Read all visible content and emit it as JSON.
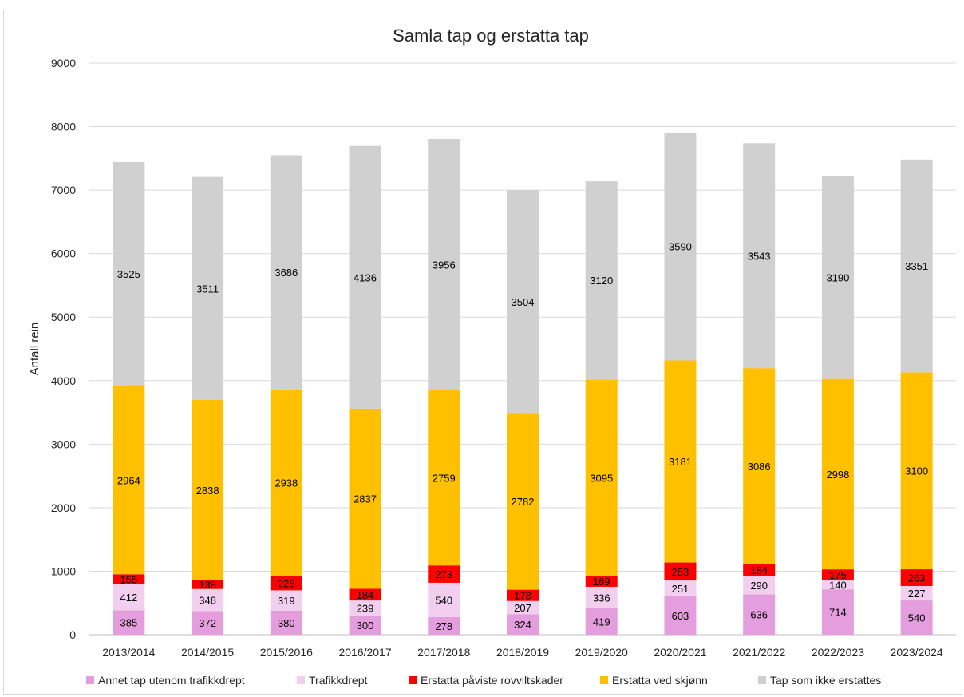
{
  "chart_data": {
    "type": "bar",
    "stacked": true,
    "title": "Samla tap og erstatta tap",
    "xlabel": "",
    "ylabel": "Antall rein",
    "ylim": [
      0,
      9000
    ],
    "yticks": [
      0,
      1000,
      2000,
      3000,
      4000,
      5000,
      6000,
      7000,
      8000,
      9000
    ],
    "grid": true,
    "legend_position": "bottom",
    "categories": [
      "2013/2014",
      "2014/2015",
      "2015/2016",
      "2016/2017",
      "2017/2018",
      "2018/2019",
      "2019/2020",
      "2020/2021",
      "2021/2022",
      "2022/2023",
      "2023/2024"
    ],
    "series": [
      {
        "name": "Annet tap utenom trafikkdrept",
        "color": "#e59edd",
        "values": [
          385,
          372,
          380,
          300,
          278,
          324,
          419,
          603,
          636,
          714,
          540
        ]
      },
      {
        "name": "Trafikkdrept",
        "color": "#f2cfee",
        "values": [
          412,
          348,
          319,
          239,
          540,
          207,
          336,
          251,
          290,
          140,
          227
        ]
      },
      {
        "name": "Erstatta påviste rovviltskader",
        "color": "#ff0000",
        "values": [
          155,
          138,
          225,
          184,
          273,
          178,
          169,
          283,
          184,
          175,
          263
        ]
      },
      {
        "name": "Erstatta ved skjønn",
        "color": "#ffc000",
        "values": [
          2964,
          2838,
          2938,
          2837,
          2759,
          2782,
          3095,
          3181,
          3086,
          2998,
          3100
        ]
      },
      {
        "name": "Tap som ikke erstattes",
        "color": "#d0d0d0",
        "values": [
          3525,
          3511,
          3686,
          4136,
          3956,
          3504,
          3120,
          3590,
          3543,
          3190,
          3351
        ]
      }
    ]
  }
}
